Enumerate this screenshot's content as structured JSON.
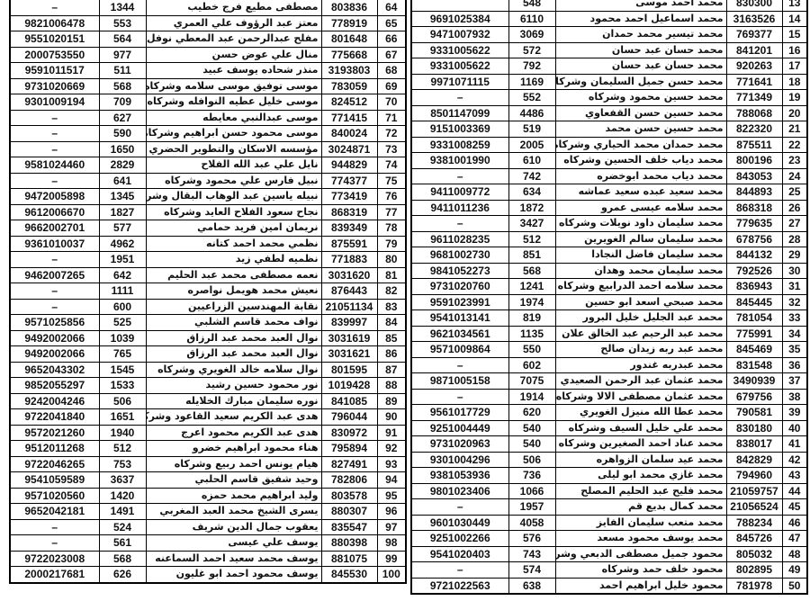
{
  "tables": [
    {
      "rows": [
        [
          "64",
          "803836",
          "مصطفى مطيع فرج خطيب",
          "1344",
          "–"
        ],
        [
          "65",
          "778919",
          "معتز عبد الرؤوف علي العمري",
          "553",
          "9821006478"
        ],
        [
          "66",
          "801648",
          "مفلح عبدالرحمن عبد المعطي نوفل",
          "564",
          "9551020151"
        ],
        [
          "67",
          "775668",
          "منال علي عوض حسن",
          "977",
          "2000753550"
        ],
        [
          "68",
          "3193803",
          "منذر شحاده يوسف عبيد",
          "511",
          "9591011517"
        ],
        [
          "69",
          "783059",
          "موسى توفيق موسى سلامه وشركاه",
          "568",
          "9731020669"
        ],
        [
          "70",
          "824512",
          "موسى خليل عطيه النوافله وشركاه",
          "709",
          "9301009194"
        ],
        [
          "71",
          "771415",
          "موسى عبدالنبي معايطه",
          "627",
          "–"
        ],
        [
          "72",
          "840024",
          "موسى محمود حسن ابراهيم وشركاه",
          "590",
          "–"
        ],
        [
          "73",
          "3024871",
          "مؤسسه الاسكان والتطوير الحضري",
          "1650",
          "–"
        ],
        [
          "74",
          "944829",
          "نايل علي عبد الله الفلاح",
          "2829",
          "9581024460"
        ],
        [
          "75",
          "774377",
          "نبيل فارس علي محمود وشركاه",
          "641",
          "–"
        ],
        [
          "76",
          "773419",
          "نبيله ياسين عبد الوهاب البقال وشركاه",
          "1345",
          "9472005898"
        ],
        [
          "77",
          "868319",
          "نجاح سعود الفلاح العايد وشركاه",
          "1827",
          "9612006670"
        ],
        [
          "78",
          "839349",
          "نريمان امين فريد حمامي",
          "577",
          "9662002701"
        ],
        [
          "79",
          "875591",
          "نظمي محمد احمد كتانه",
          "4962",
          "9361010037"
        ],
        [
          "80",
          "771883",
          "نظميه لطفي زيد",
          "1951",
          "–"
        ],
        [
          "81",
          "3031620",
          "نعمه مصطفى محمد عبد الحليم",
          "642",
          "9462007265"
        ],
        [
          "82",
          "876443",
          "نعيش محمد هويمل نواصره",
          "1111",
          "–"
        ],
        [
          "83",
          "21051134",
          "نقابة المهندسين الزراعيين",
          "600",
          "–"
        ],
        [
          "84",
          "839997",
          "نواف محمد قاسم الشلبي",
          "525",
          "9571025856"
        ],
        [
          "85",
          "3031619",
          "نوال العبد محمد عبد الرزاق",
          "1039",
          "9492002066"
        ],
        [
          "86",
          "3031621",
          "نوال العبد محمد عبد الرزاق",
          "765",
          "9492002066"
        ],
        [
          "87",
          "801595",
          "نوال سلامه خالد الغويري وشركاه",
          "1545",
          "9652043302"
        ],
        [
          "88",
          "1019428",
          "نور محمود حسين رشيد",
          "1533",
          "9852055297"
        ],
        [
          "89",
          "841085",
          "نوره سليمان مبارك الخلايله",
          "506",
          "9242004246"
        ],
        [
          "90",
          "796044",
          "هدى عبد الكريم سعيد القاعود وشركاه",
          "1651",
          "9722041840"
        ],
        [
          "91",
          "830972",
          "هدى عبد الكريم محمود اعرج",
          "1940",
          "9572021260"
        ],
        [
          "92",
          "795894",
          "هناء محمود ابراهيم خضرو",
          "512",
          "9512011268"
        ],
        [
          "93",
          "827491",
          "هيام يونس احمد ربيع وشركاه",
          "753",
          "9722046265"
        ],
        [
          "94",
          "782806",
          "وحيد شفيق قاسم الحلبي",
          "3637",
          "9541059589"
        ],
        [
          "95",
          "803578",
          "وليد ابراهيم محمد حمزه",
          "1420",
          "9571020560"
        ],
        [
          "96",
          "880307",
          "يسرى الشيخ محمد العبد المغربي",
          "1491",
          "9652042181"
        ],
        [
          "97",
          "835547",
          "يعقوب جمال الدين شريف",
          "524",
          "–"
        ],
        [
          "98",
          "880398",
          "يوسف علي عيسى",
          "561",
          "–"
        ],
        [
          "99",
          "881075",
          "يوسف محمد سعيد احمد السماعنه",
          "568",
          "9722023008"
        ],
        [
          "100",
          "845530",
          "يوسف محمود احمد ابو غليون",
          "626",
          "2000217681"
        ]
      ]
    },
    {
      "rows": [
        [
          "13",
          "830300",
          "محمد احمد موسى",
          "548"
        ],
        [
          "14",
          "3163526",
          "محمد اسماعيل احمد محمود",
          "6110",
          "9691025384"
        ],
        [
          "15",
          "769377",
          "محمد تيسير محمد حمدان",
          "3069",
          "9471007932"
        ],
        [
          "16",
          "841201",
          "محمد حسان عبد حسان",
          "572",
          "9331005622"
        ],
        [
          "17",
          "920263",
          "محمد حسان عبد حسان",
          "792",
          "9331005622"
        ],
        [
          "18",
          "771641",
          "محمد حسن جميل السليمان وشركاه",
          "1169",
          "9971071115"
        ],
        [
          "19",
          "771349",
          "محمد حسين محمود وشركاه",
          "552",
          "–"
        ],
        [
          "20",
          "788068",
          "محمد حسين حسن القفعاوي",
          "4486",
          "8501147099"
        ],
        [
          "21",
          "822320",
          "محمد حسين حسن محمد",
          "519",
          "9151003369"
        ],
        [
          "22",
          "875511",
          "محمد حمدان محمد الحياري وشركاه",
          "2005",
          "9331008259"
        ],
        [
          "23",
          "800196",
          "محمد دياب خلف الحسين وشركاه",
          "610",
          "9381001990"
        ],
        [
          "24",
          "843053",
          "محمد دياب محمد ابوخضره",
          "742",
          "–"
        ],
        [
          "25",
          "844893",
          "محمد سعيد عبده سعيد عماشه",
          "634",
          "9411009772"
        ],
        [
          "26",
          "868318",
          "محمد سلامه عيسى عمرو",
          "1872",
          "9411011236"
        ],
        [
          "27",
          "779635",
          "محمد سليمان داود نويلات وشركاه",
          "3427",
          "–"
        ],
        [
          "28",
          "678756",
          "محمد سليمان سالم الغويرين",
          "512",
          "9611028235"
        ],
        [
          "29",
          "844132",
          "محمد سليمان فاضل النجادا",
          "851",
          "9681002730"
        ],
        [
          "30",
          "792526",
          "محمد سليمان محمد وهدان",
          "568",
          "9841052273"
        ],
        [
          "31",
          "836943",
          "محمد سلامه احمد الدرابيع وشركاه",
          "1241",
          "9731020760"
        ],
        [
          "32",
          "845445",
          "محمد صبحي اسعد ابو حسين",
          "1974",
          "9591023991"
        ],
        [
          "33",
          "781054",
          "محمد عبد الجليل خليل البرور",
          "819",
          "9541013141"
        ],
        [
          "34",
          "775991",
          "محمد عبد الرحيم عبد الخالق علان",
          "1135",
          "9621034561"
        ],
        [
          "35",
          "845469",
          "محمد عبد ربه زيدان صالح",
          "550",
          "9571009864"
        ],
        [
          "36",
          "831548",
          "محمد عبدربه غندور",
          "602",
          "–"
        ],
        [
          "37",
          "3490939",
          "محمد عثمان عبد الرحمن الصعيدي وشركاه",
          "7075",
          "9871005158"
        ],
        [
          "38",
          "679756",
          "محمد عثمان مصطفى الالا وشركاه",
          "1914",
          "–"
        ],
        [
          "39",
          "790581",
          "محمد عطا الله منيزل الغويري",
          "620",
          "9561017729"
        ],
        [
          "40",
          "830180",
          "محمد علي خليل السيف وشركاه",
          "540",
          "9251004449"
        ],
        [
          "41",
          "838017",
          "محمد عناد احمد الصغيرين وشركاه",
          "540",
          "9731020963"
        ],
        [
          "42",
          "842829",
          "محمد عيد سلمان الزواهره",
          "506",
          "9301004296"
        ],
        [
          "43",
          "794960",
          "محمد غازي محمد ابو ليلى",
          "736",
          "9381053936"
        ],
        [
          "44",
          "21059757",
          "محمد فليح عبد الحليم المصلح",
          "1066",
          "9801023406"
        ],
        [
          "45",
          "21056524",
          "محمد كمال بديع قم",
          "1957",
          "–"
        ],
        [
          "46",
          "788234",
          "محمد متعب سليمان الفايز",
          "4058",
          "9601030449"
        ],
        [
          "47",
          "845726",
          "محمد يوسف محمود مسعد",
          "576",
          "9251002266"
        ],
        [
          "48",
          "805032",
          "محمود جميل مصطفى الدبعي وشركاه",
          "743",
          "9541020403"
        ],
        [
          "49",
          "802895",
          "محمود خلف حمد وشركاه",
          "574",
          "–"
        ],
        [
          "50",
          "781978",
          "محمود خليل ابراهيم احمد",
          "638",
          "9721022563"
        ]
      ]
    }
  ]
}
